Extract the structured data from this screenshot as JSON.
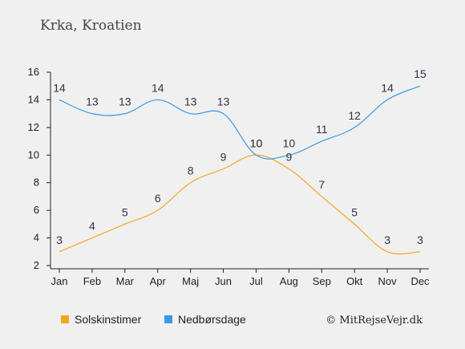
{
  "chart_data": {
    "type": "line",
    "title": "Krka, Kroatien",
    "xlabel": "",
    "ylabel": "",
    "categories": [
      "Jan",
      "Feb",
      "Mar",
      "Apr",
      "Maj",
      "Jun",
      "Jul",
      "Aug",
      "Sep",
      "Okt",
      "Nov",
      "Dec"
    ],
    "ylim": [
      2,
      16
    ],
    "yticks": [
      2,
      4,
      6,
      8,
      10,
      12,
      14,
      16
    ],
    "grid": false,
    "legend_position": "bottom",
    "series": [
      {
        "name": "Solskinstimer",
        "color": "#f5a623",
        "values": [
          3,
          4,
          5,
          6,
          8,
          9,
          10,
          9,
          7,
          5,
          3,
          3
        ]
      },
      {
        "name": "Nedbørsdage",
        "color": "#3b9ae1",
        "values": [
          14,
          13,
          13,
          14,
          13,
          13,
          10,
          10,
          11,
          12,
          14,
          15
        ]
      }
    ],
    "credit": "© MitRejseVejr.dk"
  }
}
